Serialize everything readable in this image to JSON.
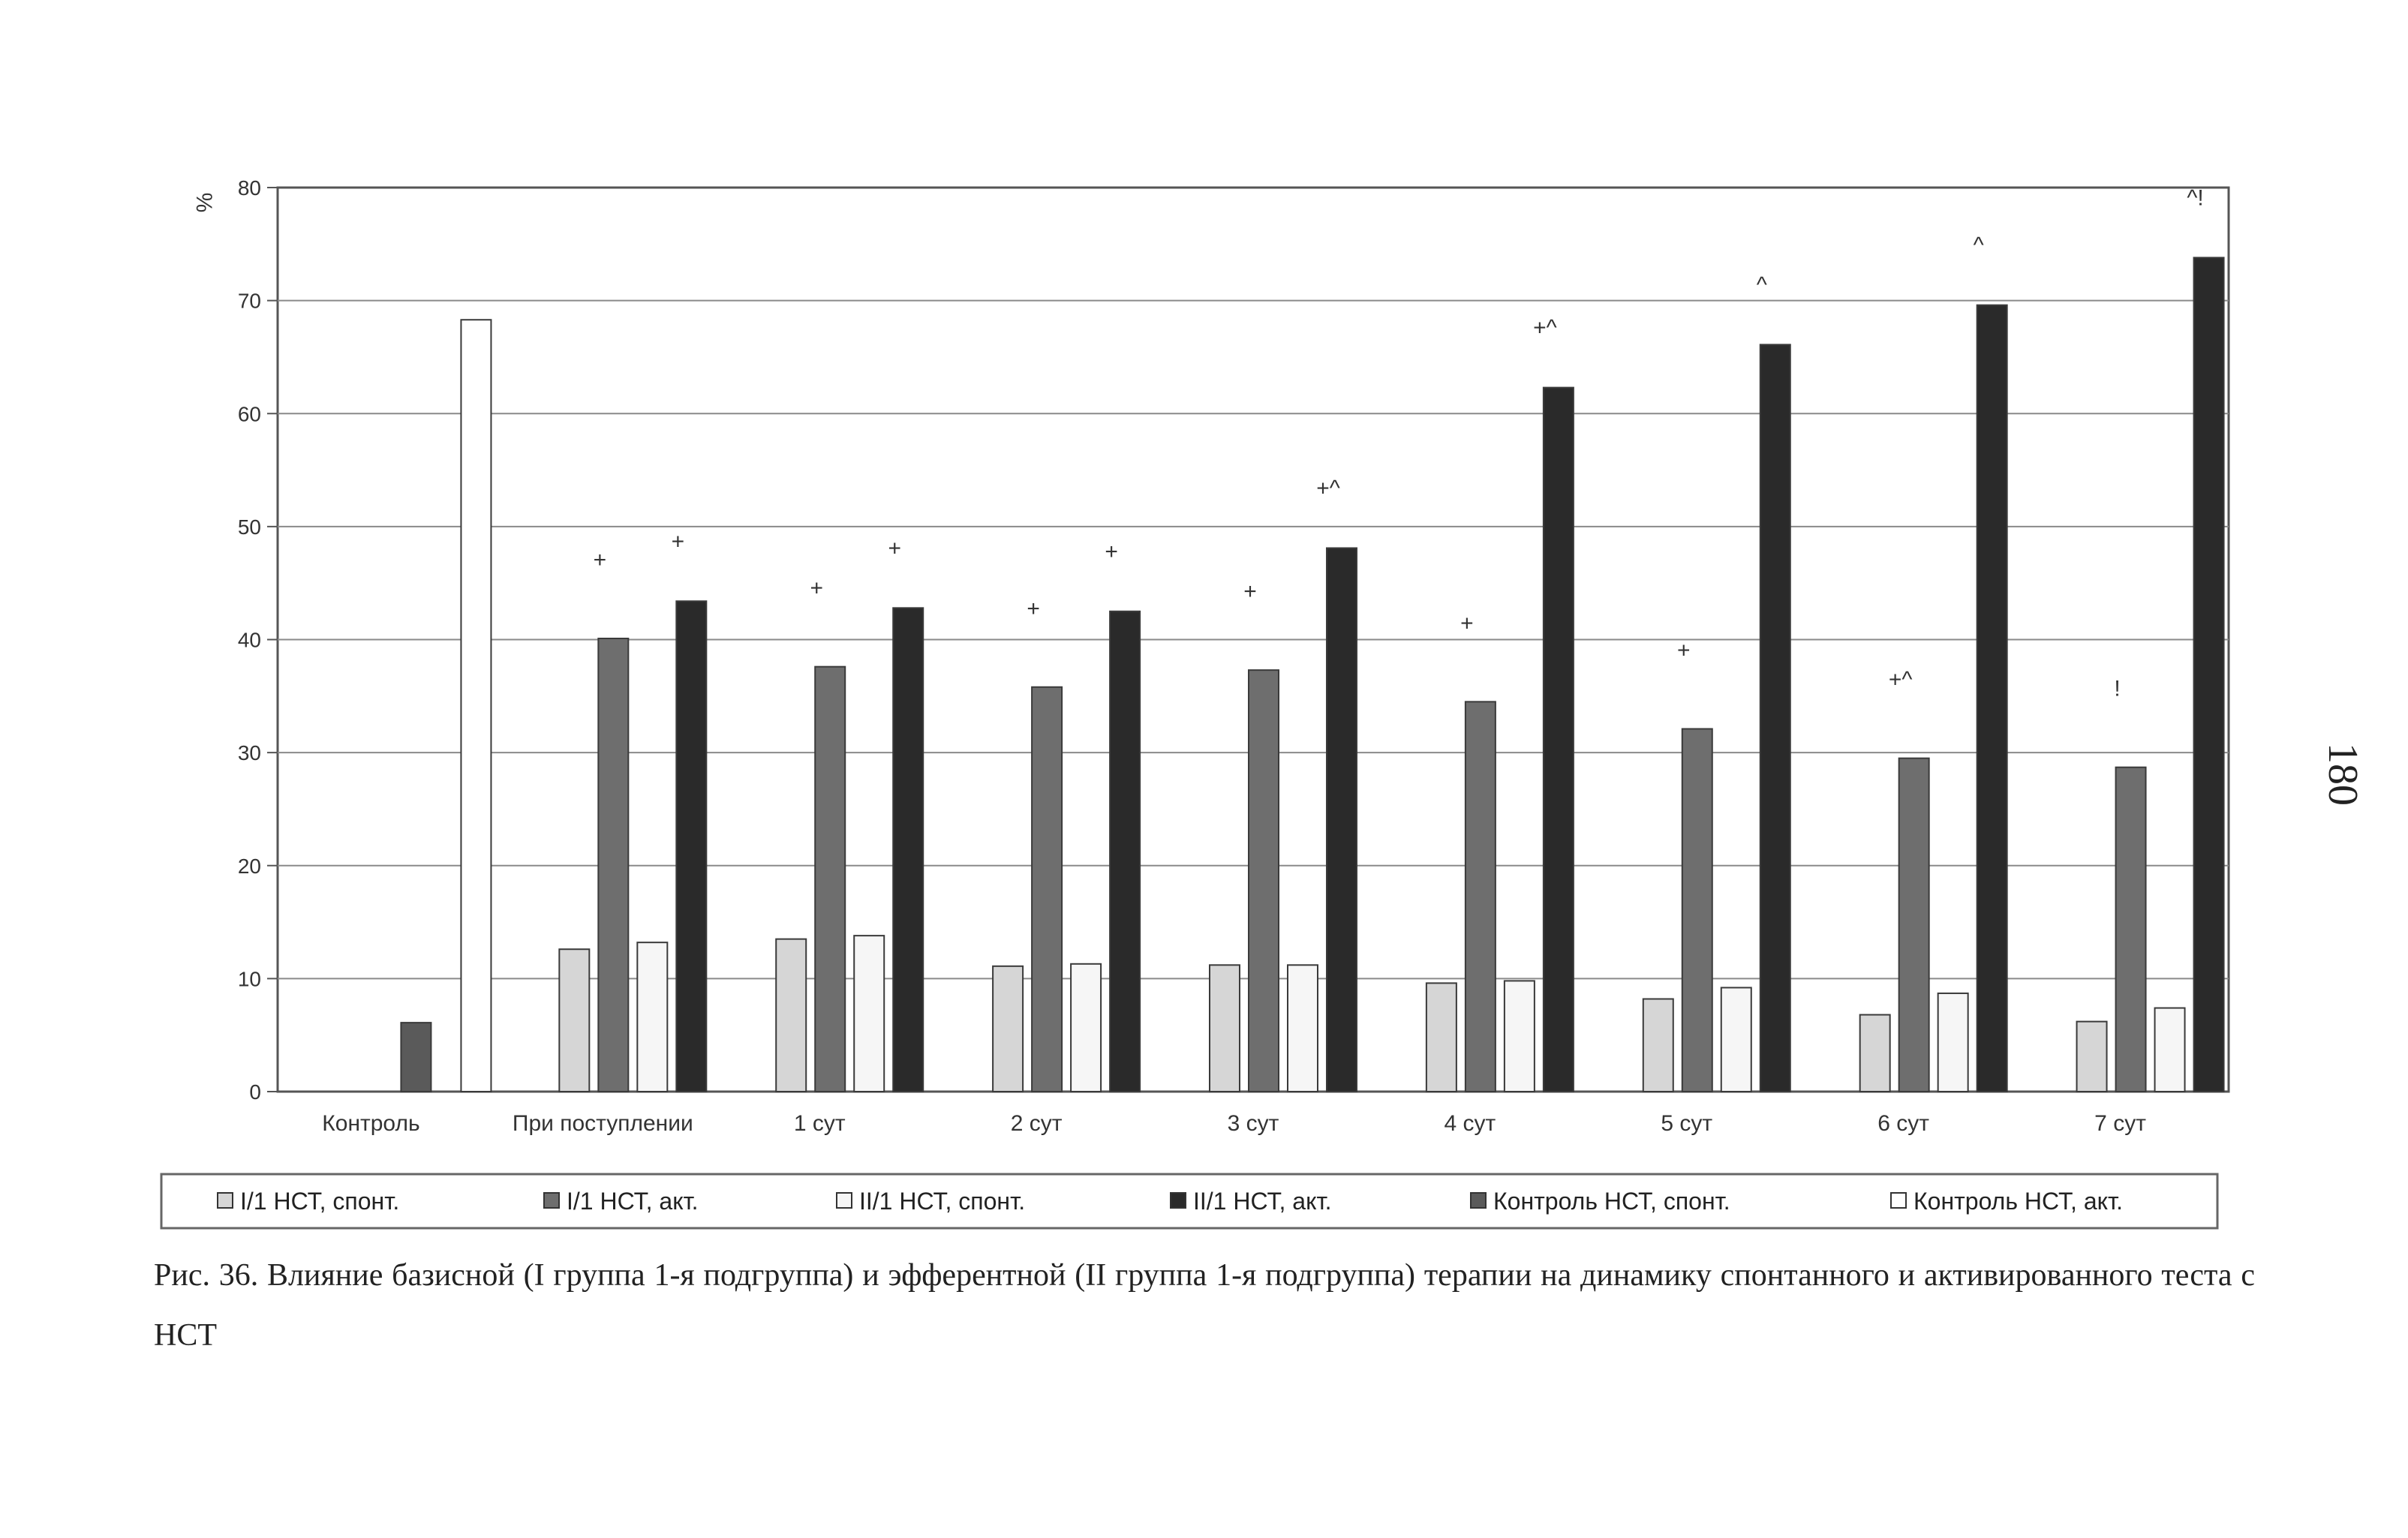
{
  "page_number": "180",
  "caption": "Рис. 36. Влияние базисной (I группа 1-я подгруппа) и эфферентной (II группа 1-я подгруппа) терапии на динамику спонтанного и активированного теста с НСТ",
  "colors": {
    "I1_spont": "#d6d6d6",
    "I1_act": "#6e6e6e",
    "II1_spont": "#f6f6f6",
    "II1_act": "#2a2a2a",
    "control_spont": "#5a5a5a",
    "control_act": "#ffffff"
  },
  "chart_data": {
    "type": "bar",
    "title": "",
    "xlabel": "",
    "ylabel": "%",
    "ylim": [
      0,
      80
    ],
    "yticks": [
      0,
      10,
      20,
      30,
      40,
      50,
      60,
      70,
      80
    ],
    "grid": true,
    "legend_position": "bottom",
    "categories": [
      "Контроль",
      "При поступлении",
      "1 сут",
      "2 сут",
      "3 сут",
      "4 сут",
      "5 сут",
      "6 сут",
      "7 сут"
    ],
    "series": [
      {
        "name": "I/1 НСТ, спонт.",
        "key": "I1_spont",
        "values": [
          null,
          12.6,
          13.5,
          11.1,
          11.2,
          9.6,
          8.2,
          6.8,
          6.2
        ]
      },
      {
        "name": "I/1 НСТ, акт.",
        "key": "I1_act",
        "values": [
          null,
          40.1,
          37.6,
          35.8,
          37.3,
          34.5,
          32.1,
          29.5,
          28.7
        ]
      },
      {
        "name": "II/1 НСТ, спонт.",
        "key": "II1_spont",
        "values": [
          null,
          13.2,
          13.8,
          11.3,
          11.2,
          9.8,
          9.2,
          8.7,
          7.4
        ]
      },
      {
        "name": "II/1 НСТ, акт.",
        "key": "II1_act",
        "values": [
          null,
          43.4,
          42.8,
          42.5,
          48.1,
          62.3,
          66.1,
          69.6,
          73.8
        ]
      },
      {
        "name": "Контроль НСТ, спонт.",
        "key": "control_spont",
        "values": [
          6.1,
          null,
          null,
          null,
          null,
          null,
          null,
          null,
          null
        ]
      },
      {
        "name": "Контроль НСТ, акт.",
        "key": "control_act",
        "values": [
          68.3,
          null,
          null,
          null,
          null,
          null,
          null,
          null,
          null
        ]
      }
    ],
    "annotations": [
      {
        "text": "+",
        "category": "При поступлении",
        "series": "I1_act"
      },
      {
        "text": "+",
        "category": "При поступлении",
        "series": "II1_act"
      },
      {
        "text": "+",
        "category": "1 сут",
        "series": "I1_act"
      },
      {
        "text": "+",
        "category": "1 сут",
        "series": "II1_act"
      },
      {
        "text": "+",
        "category": "2 сут",
        "series": "I1_act"
      },
      {
        "text": "+",
        "category": "2 сут",
        "series": "II1_act"
      },
      {
        "text": "+",
        "category": "3 сут",
        "series": "I1_act"
      },
      {
        "text": "+^",
        "category": "3 сут",
        "series": "II1_act"
      },
      {
        "text": "+",
        "category": "4 сут",
        "series": "I1_act"
      },
      {
        "text": "+^",
        "category": "4 сут",
        "series": "II1_act"
      },
      {
        "text": "+",
        "category": "5 сут",
        "series": "I1_act"
      },
      {
        "text": "^",
        "category": "5 сут",
        "series": "II1_act"
      },
      {
        "text": "+^",
        "category": "6 сут",
        "series": "I1_act"
      },
      {
        "text": "^",
        "category": "6 сут",
        "series": "II1_act"
      },
      {
        "text": "!",
        "category": "7 сут",
        "series": "I1_act"
      },
      {
        "text": "^!",
        "category": "7 сут",
        "series": "II1_act"
      }
    ]
  }
}
